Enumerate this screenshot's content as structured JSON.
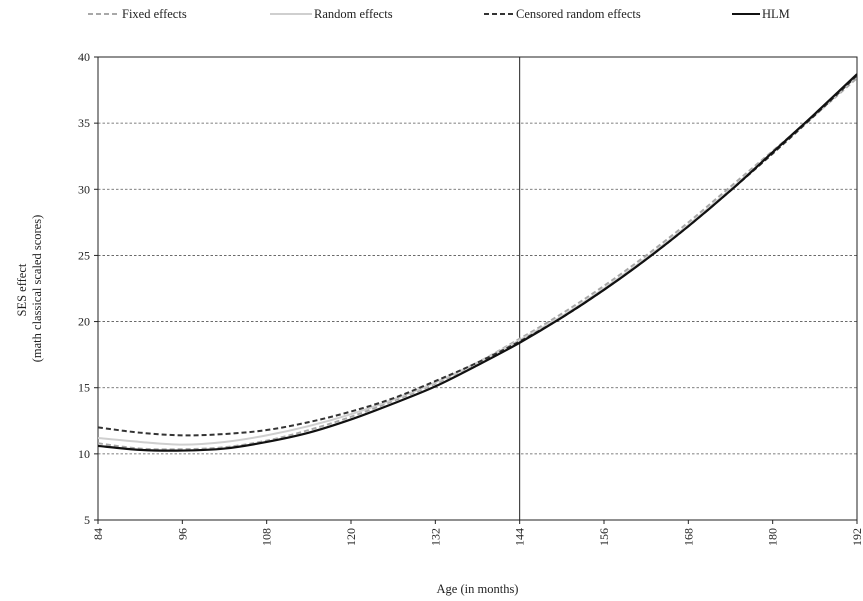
{
  "chart_data": {
    "type": "line",
    "xlabel": "Age (in months)",
    "ylabel": [
      "SES effect",
      "(math classical scaled scores)"
    ],
    "xlim": [
      84,
      192
    ],
    "ylim": [
      5,
      40
    ],
    "x_ticks": [
      84,
      96,
      108,
      120,
      132,
      144,
      156,
      168,
      180,
      192
    ],
    "y_ticks": [
      5,
      10,
      15,
      20,
      25,
      30,
      35,
      40
    ],
    "grid": "horizontal dashed",
    "reference_line_x": 144,
    "legend_position": "top",
    "x": [
      84,
      90,
      96,
      102,
      108,
      114,
      120,
      126,
      132,
      138,
      144,
      150,
      156,
      162,
      168,
      174,
      180,
      186,
      192
    ],
    "series": [
      {
        "name": "Fixed effects",
        "color": "#a8a8a8",
        "style": "dashed",
        "values": [
          10.8,
          10.4,
          10.35,
          10.5,
          11.0,
          11.8,
          12.8,
          14.0,
          15.3,
          16.9,
          18.7,
          20.6,
          22.7,
          25.0,
          27.5,
          30.2,
          32.9,
          35.6,
          38.4
        ]
      },
      {
        "name": "Random effects",
        "color": "#cfcfcf",
        "style": "solid",
        "values": [
          11.2,
          10.9,
          10.7,
          10.9,
          11.4,
          12.1,
          13.0,
          14.1,
          15.4,
          16.9,
          18.6,
          20.4,
          22.5,
          24.8,
          27.3,
          30.0,
          32.8,
          35.6,
          38.6
        ]
      },
      {
        "name": "Censored random effects",
        "color": "#333333",
        "style": "dashed",
        "values": [
          12.0,
          11.6,
          11.4,
          11.5,
          11.8,
          12.4,
          13.2,
          14.2,
          15.5,
          16.9,
          18.5,
          20.3,
          22.4,
          24.7,
          27.2,
          29.9,
          32.7,
          35.6,
          38.6
        ]
      },
      {
        "name": "HLM",
        "color": "#111111",
        "style": "solid",
        "values": [
          10.6,
          10.3,
          10.25,
          10.4,
          10.9,
          11.6,
          12.6,
          13.8,
          15.1,
          16.7,
          18.4,
          20.3,
          22.4,
          24.7,
          27.2,
          29.9,
          32.8,
          35.7,
          38.7
        ]
      }
    ]
  }
}
